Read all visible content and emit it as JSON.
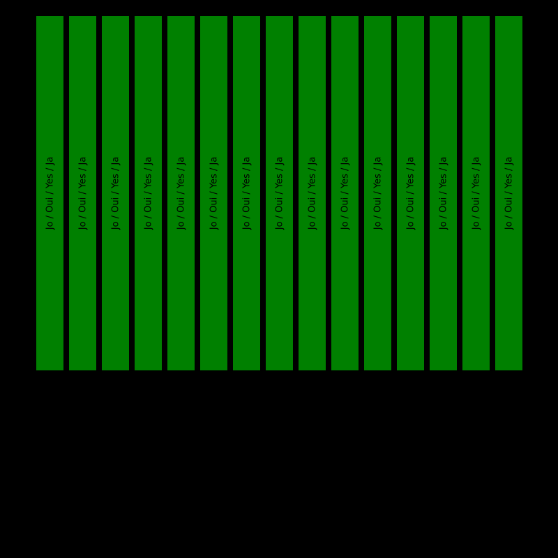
{
  "page": {
    "background_color": "#000000"
  },
  "chart_data": {
    "type": "bar",
    "title": "",
    "xlabel": "",
    "ylabel": "",
    "bar_count": 15,
    "categories": [
      "",
      "",
      "",
      "",
      "",
      "",
      "",
      "",
      "",
      "",
      "",
      "",
      "",
      "",
      ""
    ],
    "values": [
      1,
      1,
      1,
      1,
      1,
      1,
      1,
      1,
      1,
      1,
      1,
      1,
      1,
      1,
      1
    ],
    "ylim": [
      0,
      1
    ],
    "bar_label": "Jo / Oui / Yes / Ja",
    "bar_label_rotation_deg": 90,
    "bar_label_position": "centered-inside-bar",
    "bar_color": "#008000",
    "bar_label_color": "#000000",
    "background_color": "#000000",
    "grid": false,
    "axes_visible": false,
    "legend": null
  }
}
